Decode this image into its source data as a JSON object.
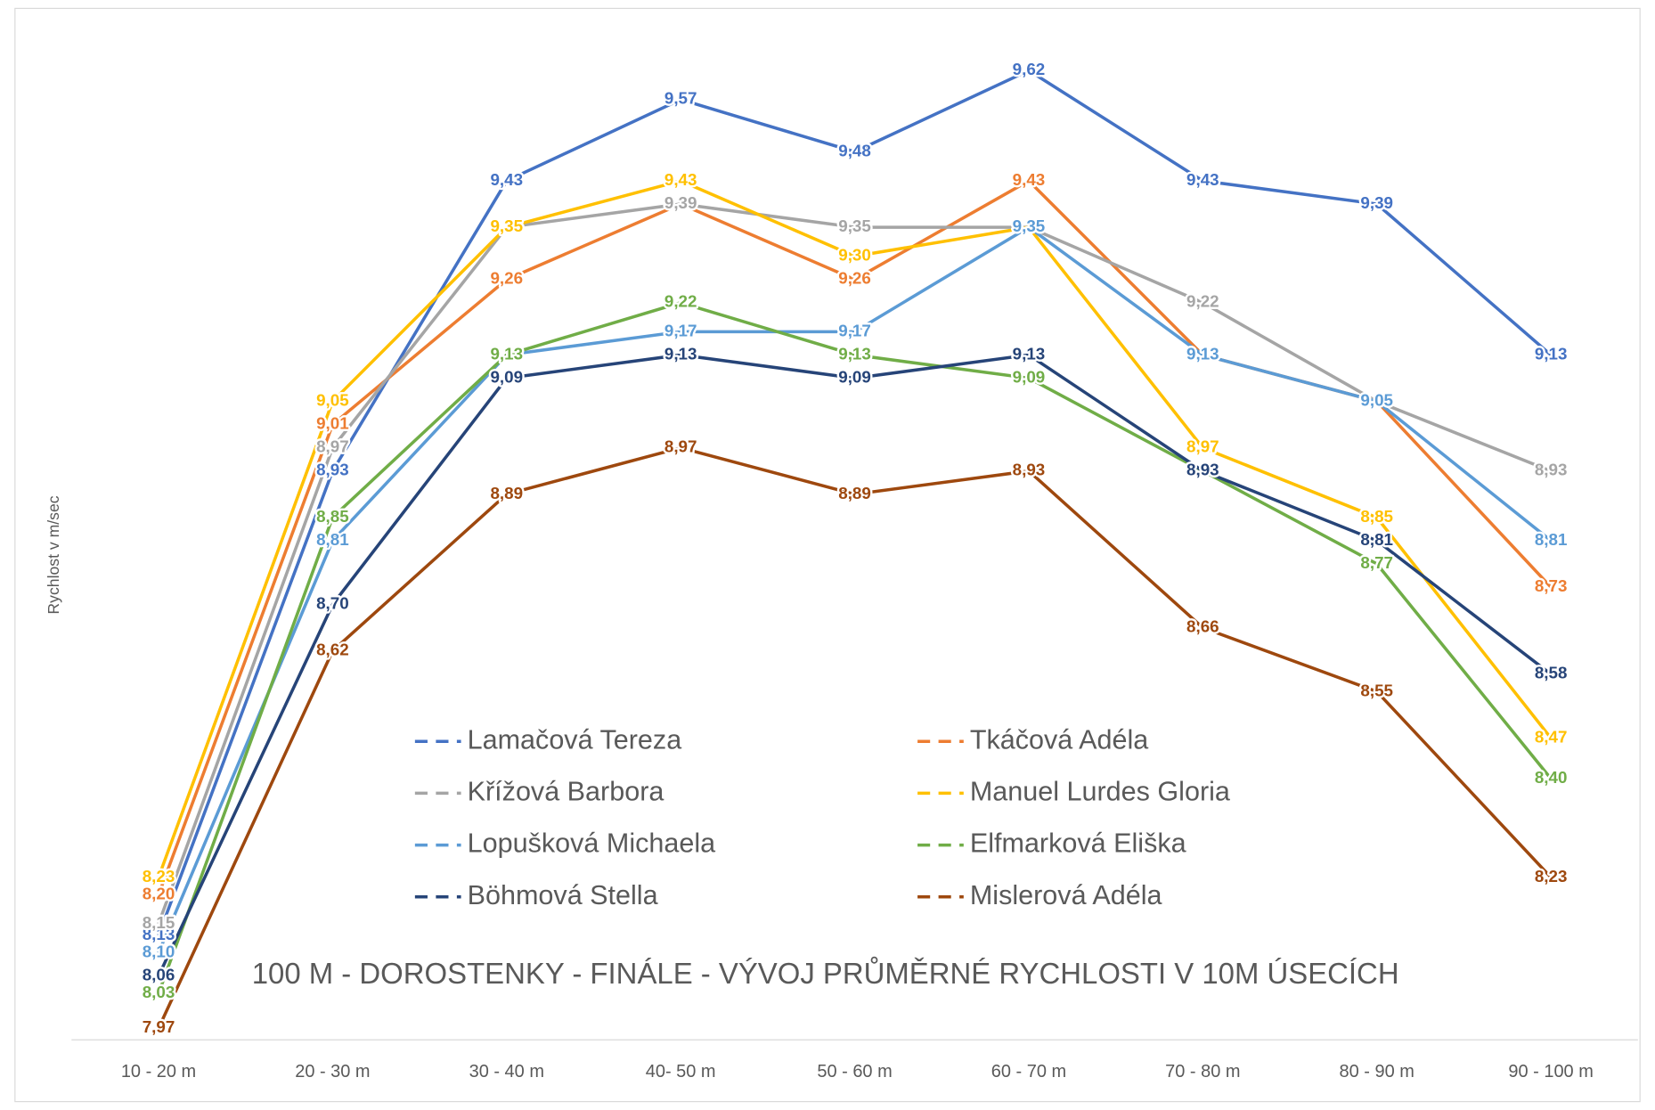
{
  "chart_data": {
    "type": "line",
    "title": "100 M - DOROSTENKY - FINÁLE - VÝVOJ PRŮMĚRNÉ RYCHLOSTI V 10M ÚSECÍCH",
    "y_label": "Rychlost v m/sec",
    "categories": [
      "10 - 20 m",
      "20 - 30 m",
      "30 - 40 m",
      "40- 50 m",
      "50 - 60 m",
      "60 - 70 m",
      "70 - 80 m",
      "80 - 90 m",
      "90 - 100 m"
    ],
    "ylim": [
      7.95,
      9.7
    ],
    "grid": false,
    "legend": "bottom",
    "series": [
      {
        "name": "Lamačová Tereza",
        "color": "#4472c4",
        "values": [
          8.13,
          8.93,
          9.43,
          9.57,
          9.48,
          9.62,
          9.43,
          9.39,
          9.13
        ],
        "value_labels": [
          "8,13",
          "8,93",
          "9,43",
          "9,57",
          "9,48",
          "9,62",
          "9,43",
          "9,39",
          "9,13"
        ]
      },
      {
        "name": "Tkáčová Adéla",
        "color": "#ed7d31",
        "values": [
          8.2,
          9.01,
          9.26,
          9.39,
          9.26,
          9.43,
          9.13,
          9.05,
          8.73
        ],
        "value_labels": [
          "8,20",
          "9,01",
          "9,26",
          "9,39",
          "9,26",
          "9,43",
          "9,13",
          "9,05",
          "8,73"
        ]
      },
      {
        "name": "Křížová Barbora",
        "color": "#a5a5a5",
        "values": [
          8.15,
          8.97,
          9.35,
          9.39,
          9.35,
          9.35,
          9.22,
          9.05,
          8.93
        ],
        "value_labels": [
          "8,15",
          "8,97",
          "9,35",
          "9,39",
          "9,35",
          "9,35",
          "9,22",
          "9,05",
          "8,93"
        ]
      },
      {
        "name": "Manuel Lurdes Gloria",
        "color": "#ffc000",
        "values": [
          8.23,
          9.05,
          9.35,
          9.43,
          9.3,
          9.35,
          8.97,
          8.85,
          8.47
        ],
        "value_labels": [
          "8,23",
          "9,05",
          "9,35",
          "9,43",
          "9,30",
          "9,35",
          "8,97",
          "8,85",
          "8,47"
        ]
      },
      {
        "name": "Lopušková Michaela",
        "color": "#5b9bd5",
        "values": [
          8.1,
          8.81,
          9.13,
          9.17,
          9.17,
          9.35,
          9.13,
          9.05,
          8.81
        ],
        "value_labels": [
          "8,10",
          "8,81",
          "9,13",
          "9,17",
          "9,17",
          "9,35",
          "9,13",
          "9,05",
          "8,81"
        ]
      },
      {
        "name": "Elfmarková Eliška",
        "color": "#70ad47",
        "values": [
          8.03,
          8.85,
          9.13,
          9.22,
          9.13,
          9.09,
          8.93,
          8.77,
          8.4
        ],
        "value_labels": [
          "8,03",
          "8,85",
          "9,13",
          "9,22",
          "9,13",
          "9,09",
          "8,93",
          "8,77",
          "8,40"
        ]
      },
      {
        "name": "Böhmová Stella",
        "color": "#264478",
        "values": [
          8.06,
          8.7,
          9.09,
          9.13,
          9.09,
          9.13,
          8.93,
          8.81,
          8.58
        ],
        "value_labels": [
          "8,06",
          "8,70",
          "9,09",
          "9,13",
          "9,09",
          "9,13",
          "8,93",
          "8,81",
          "8,58"
        ]
      },
      {
        "name": "Mislerová Adéla",
        "color": "#9e480e",
        "values": [
          7.97,
          8.62,
          8.89,
          8.97,
          8.89,
          8.93,
          8.66,
          8.55,
          8.23
        ],
        "value_labels": [
          "7,97",
          "8,62",
          "8,89",
          "8,97",
          "8,89",
          "8,93",
          "8,66",
          "8,55",
          "8,23"
        ]
      }
    ]
  }
}
